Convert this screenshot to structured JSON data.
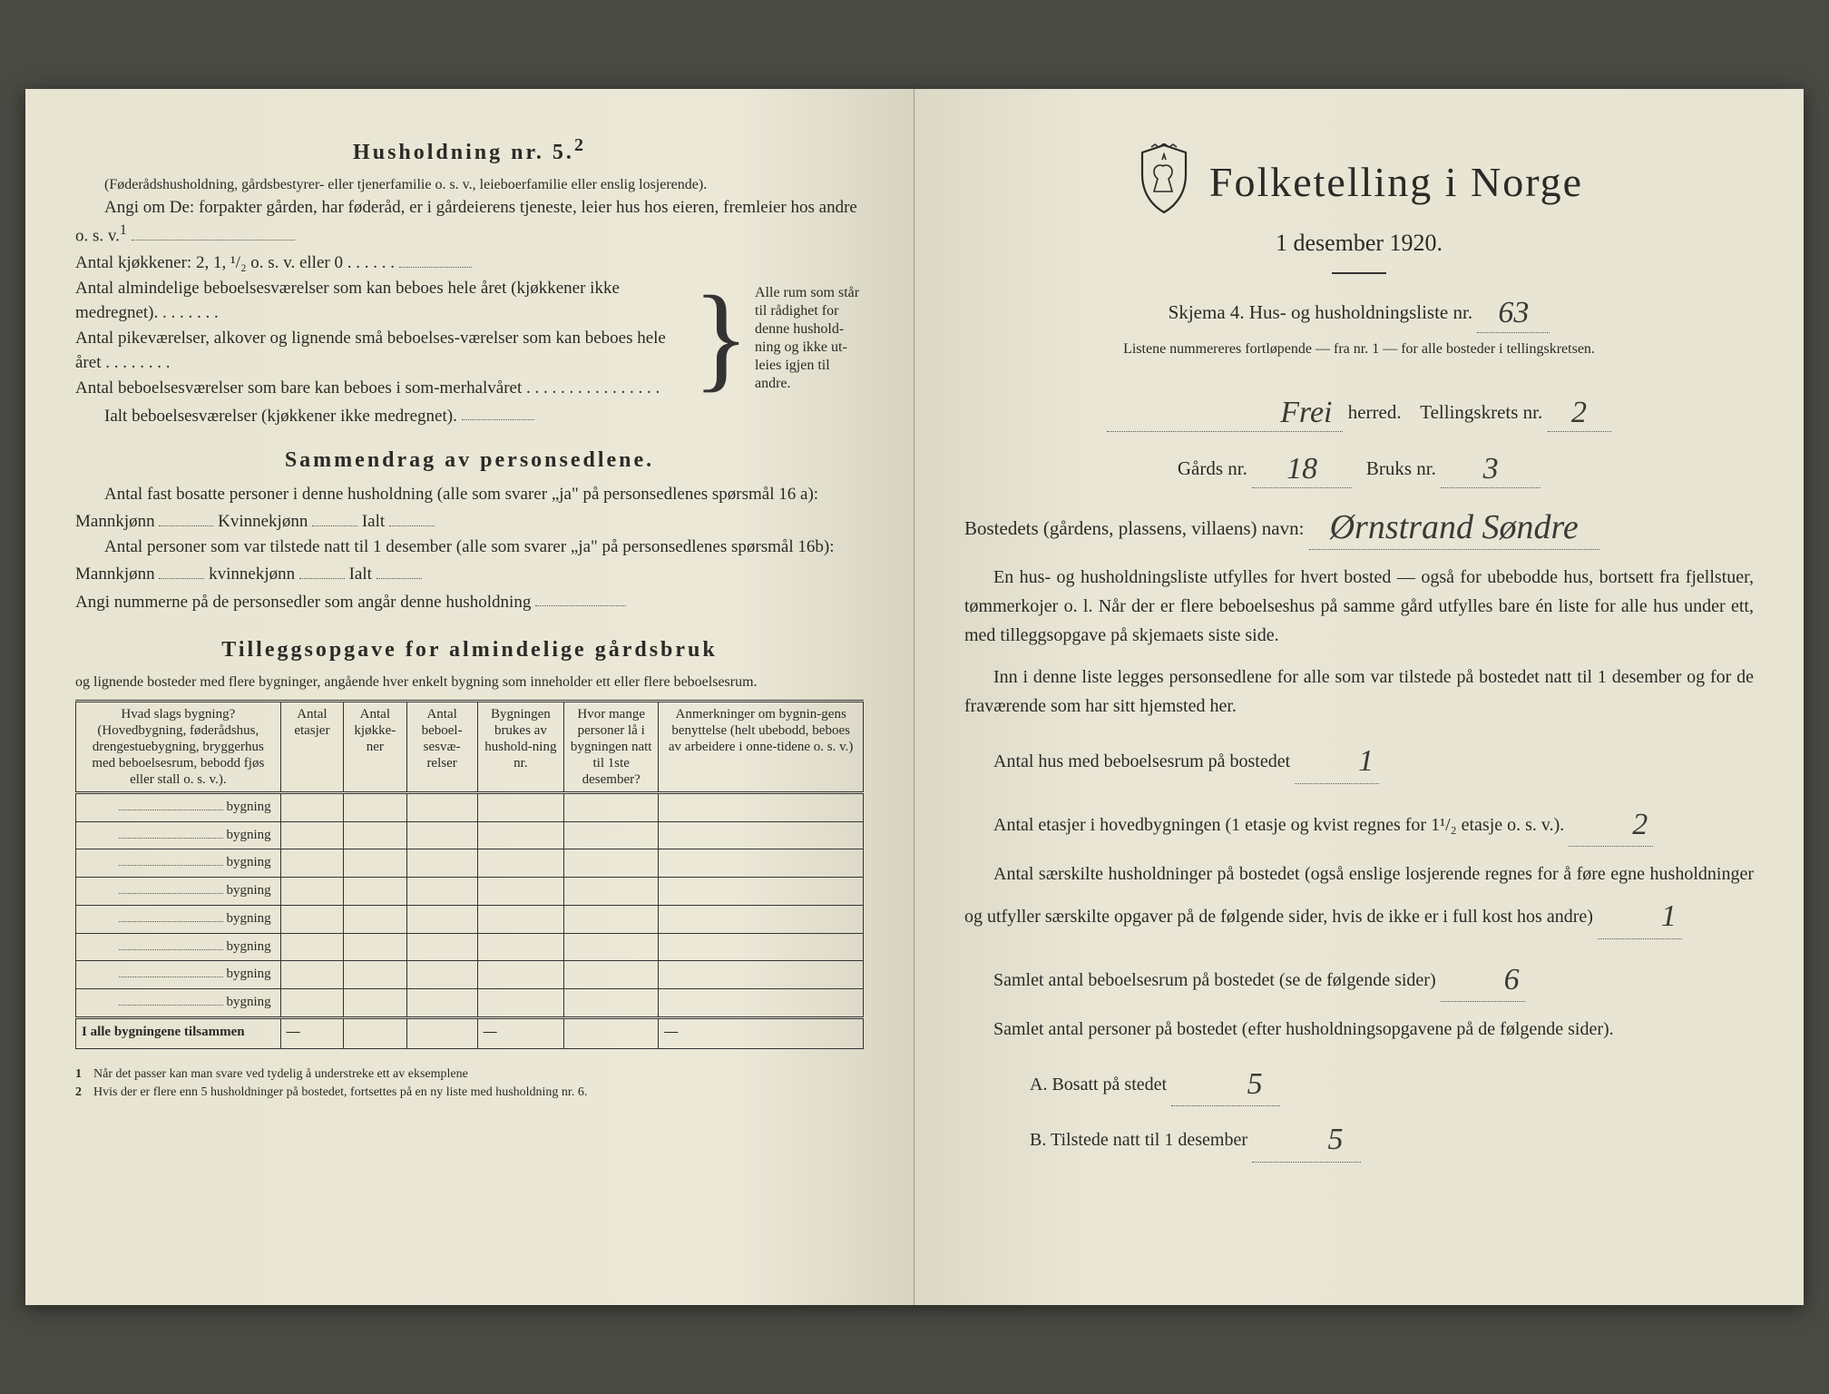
{
  "left": {
    "h5_title": "Husholdning nr. 5.",
    "h5_sup": "2",
    "h5_note": "(Føderådshusholdning, gårdsbestyrer- eller tjenerfamilie o. s. v., leieboerfamilie eller enslig losjerende).",
    "angi": "Angi om De: forpakter gården, har føderåd, er i gårdeierens tjeneste, leier hus hos eieren, fremleier hos andre o. s. v.",
    "angi_sup": "1",
    "kjokkener": "Antal kjøkkener: 2, 1, ¹/₂ o. s. v. eller 0 . . . . . .",
    "rooms1": "Antal almindelige beboelsesværelser som kan beboes hele året (kjøkkener ikke medregnet). . . . . . . .",
    "rooms2": "Antal pikeværelser, alkover og lignende små beboelses-værelser som kan beboes hele året . . . . . . . .",
    "rooms3": "Antal beboelsesværelser som bare kan beboes i som-merhalvåret . . . . . . . . . . . . . . . .",
    "ialt": "Ialt beboelsesværelser (kjøkkener ikke medregnet).",
    "brace": "Alle rum som står til rådighet for denne hushold-ning og ikke ut-leies igjen til andre.",
    "sammendrag_title": "Sammendrag av personsedlene.",
    "s_line1a": "Antal fast bosatte personer i denne husholdning (alle som svarer „ja\" på personsedlenes spørsmål 16 a): Mannkjønn",
    "s_kvinne": "Kvinnekjønn",
    "s_ialt": "Ialt",
    "s_line2a": "Antal personer som var tilstede natt til 1 desember (alle som svarer „ja\" på personsedlenes spørsmål 16b): Mannkjønn",
    "s_kvinne2": "kvinnekjønn",
    "s_line3": "Angi nummerne på de personsedler som angår denne husholdning",
    "tillegg_title": "Tilleggsopgave for almindelige gårdsbruk",
    "tillegg_sub": "og lignende bosteder med flere bygninger, angående hver enkelt bygning som inneholder ett eller flere beboelsesrum.",
    "table": {
      "headers": [
        "Hvad slags bygning?\n(Hovedbygning, føderådshus, drengestuebygning, bryggerhus med beboelsesrum, bebodd fjøs eller stall o. s. v.).",
        "Antal etasjer",
        "Antal kjøkke-ner",
        "Antal beboel-sesvæ-relser",
        "Bygningen brukes av hushold-ning nr.",
        "Hvor mange personer lå i bygningen natt til 1ste desember?",
        "Anmerkninger om bygnin-gens benyttelse (helt ubebodd, beboes av arbeidere i onne-tidene o. s. v.)"
      ],
      "rowlabel": "bygning",
      "rowcount": 8,
      "footer": "I alle bygningene tilsammen"
    },
    "fn1": "Når det passer kan man svare ved tydelig å understreke ett av eksemplene",
    "fn2": "Hvis der er flere enn 5 husholdninger på bostedet, fortsettes på en ny liste med husholdning nr. 6."
  },
  "right": {
    "title": "Folketelling i Norge",
    "subtitle": "1 desember 1920.",
    "form_label": "Skjema 4.  Hus- og husholdningsliste nr.",
    "liste_nr": "63",
    "listnote": "Listene nummereres fortløpende — fra nr. 1 — for alle bosteder i tellingskretsen.",
    "herred_value": "Frei",
    "herred_label": "herred.",
    "krets_label": "Tellingskrets nr.",
    "krets_value": "2",
    "gards_label": "Gårds nr.",
    "gards_value": "18",
    "bruks_label": "Bruks nr.",
    "bruks_value": "3",
    "bosted_label": "Bostedets (gårdens, plassens, villaens) navn:",
    "bosted_value": "Ørnstrand Søndre",
    "para1": "En hus- og husholdningsliste utfylles for hvert bosted — også for ubebodde hus, bortsett fra fjellstuer, tømmerkojer o. l. Når der er flere beboelseshus på samme gård utfylles bare én liste for alle hus under ett, med tilleggsopgave på skjemaets siste side.",
    "para2": "Inn i denne liste legges personsedlene for alle som var tilstede på bostedet natt til 1 desember og for de fraværende som har sitt hjemsted her.",
    "q1": "Antal hus med beboelsesrum på bostedet",
    "q1v": "1",
    "q2a": "Antal etasjer i hovedbygningen (1 etasje og kvist regnes for 1¹/₂ etasje o. s. v.).",
    "q2v": "2",
    "q3": "Antal særskilte husholdninger på bostedet (også enslige losjerende regnes for å føre egne husholdninger og utfyller særskilte opgaver på de følgende sider, hvis de ikke er i full kost hos andre)",
    "q3v": "1",
    "q4": "Samlet antal beboelsesrum på bostedet (se de følgende sider)",
    "q4v": "6",
    "q5": "Samlet antal personer på bostedet (efter husholdningsopgavene på de følgende sider).",
    "qA": "A.  Bosatt på stedet",
    "qAv": "5",
    "qB": "B.  Tilstede natt til 1 desember",
    "qBv": "5"
  },
  "colors": {
    "paper": "#e8e4d4",
    "ink": "#2a2a26",
    "handwriting": "#3a3a36"
  }
}
